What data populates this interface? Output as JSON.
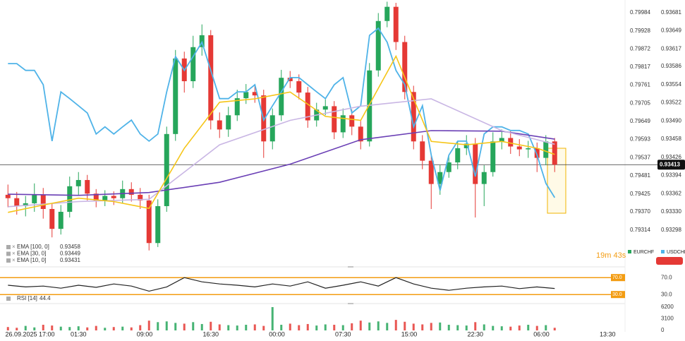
{
  "chart_data": [
    {
      "type": "candlestick",
      "x": [
        0,
        1,
        2,
        3,
        4,
        5,
        6,
        7,
        8,
        9,
        10,
        11,
        12,
        13,
        14,
        15,
        16,
        17,
        18,
        19,
        20,
        21,
        22,
        23,
        24,
        25,
        26,
        27,
        28,
        29,
        30,
        31,
        32,
        33,
        34,
        35,
        36,
        37,
        38,
        39,
        40,
        41,
        42,
        43,
        44,
        45,
        46,
        47,
        48,
        49,
        50,
        51,
        52,
        53,
        54,
        55,
        56,
        57,
        58,
        59,
        60,
        61,
        62
      ],
      "xlim": [
        -0.5,
        70
      ],
      "xticks": [
        {
          "value": 2.5,
          "label": "26.09.2025  17:00"
        },
        {
          "value": 8,
          "label": "01:30"
        },
        {
          "value": 15.5,
          "label": "09:00"
        },
        {
          "value": 23,
          "label": "16:30"
        },
        {
          "value": 30.5,
          "label": "00:00"
        },
        {
          "value": 38,
          "label": "07:30"
        },
        {
          "value": 45.5,
          "label": "15:00"
        },
        {
          "value": 53,
          "label": "22:30"
        },
        {
          "value": 60.5,
          "label": "06:00"
        },
        {
          "value": 68,
          "label": "13:30"
        }
      ],
      "ylim": [
        0.79218,
        0.80023
      ],
      "yticks": [
        0.79984,
        0.79928,
        0.79872,
        0.79817,
        0.79761,
        0.79705,
        0.79649,
        0.79593,
        0.79537,
        0.79481,
        0.79425,
        {
          "value": 0.7937,
          "label": "0.79370"
        },
        0.79314
      ],
      "y2lim": [
        0.93243,
        0.93703
      ],
      "y2ticks": [
        0.93681,
        0.93649,
        0.93617,
        0.93586,
        0.93554,
        0.93522,
        {
          "value": 0.9349,
          "label": "0.93490"
        },
        0.93458,
        0.93426,
        0.93394,
        0.93362,
        {
          "value": 0.9333,
          "label": "0.93330"
        },
        0.93298
      ],
      "series": [
        {
          "name": "EURCHF",
          "axis": "y2",
          "up_color": "#26a65b",
          "down_color": "#e53935",
          "open": [
            0.9336,
            0.93354,
            0.9334,
            0.93345,
            0.9336,
            0.93335,
            0.933,
            0.9333,
            0.93375,
            0.93386,
            0.93362,
            0.9335,
            0.93358,
            0.93354,
            0.9337,
            0.9336,
            0.9335,
            0.93275,
            0.9334,
            0.93467,
            0.936,
            0.9356,
            0.9362,
            0.93641,
            0.93491,
            0.93475,
            0.935,
            0.9353,
            0.93541,
            0.93535,
            0.93454,
            0.935,
            0.93566,
            0.9356,
            0.9354,
            0.93491,
            0.9351,
            0.93516,
            0.9347,
            0.935,
            0.9348,
            0.93454,
            0.93579,
            0.93666,
            0.93691,
            0.93629,
            0.93541,
            0.93454,
            0.9342,
            0.93379,
            0.934,
            0.93417,
            0.93442,
            0.9345,
            0.93379,
            0.934,
            0.93454,
            0.9346,
            0.93445,
            0.9344,
            0.93442,
            0.93425,
            0.93454
          ],
          "high": [
            0.93378,
            0.93365,
            0.93358,
            0.9338,
            0.93372,
            0.93345,
            0.93342,
            0.93392,
            0.934,
            0.93395,
            0.9337,
            0.93368,
            0.93366,
            0.93385,
            0.93382,
            0.93372,
            0.9336,
            0.93352,
            0.9348,
            0.93615,
            0.93612,
            0.9364,
            0.9366,
            0.9365,
            0.93505,
            0.93515,
            0.93545,
            0.93555,
            0.93552,
            0.93545,
            0.93512,
            0.9358,
            0.93578,
            0.93572,
            0.9355,
            0.93522,
            0.93528,
            0.93525,
            0.93512,
            0.9351,
            0.9349,
            0.93592,
            0.9368,
            0.937,
            0.93698,
            0.9364,
            0.93552,
            0.93465,
            0.9343,
            0.93412,
            0.9343,
            0.93455,
            0.93465,
            0.9346,
            0.93412,
            0.9347,
            0.93475,
            0.93472,
            0.93458,
            0.93455,
            0.93452,
            0.93465,
            0.9346
          ],
          "low": [
            0.93338,
            0.93325,
            0.93322,
            0.9333,
            0.93318,
            0.93285,
            0.9329,
            0.9332,
            0.9336,
            0.9335,
            0.93338,
            0.9334,
            0.93342,
            0.93345,
            0.93348,
            0.93335,
            0.93262,
            0.93268,
            0.9333,
            0.93455,
            0.9354,
            0.93548,
            0.93605,
            0.93475,
            0.9346,
            0.93462,
            0.9349,
            0.9352,
            0.93522,
            0.93425,
            0.9344,
            0.9349,
            0.93548,
            0.93528,
            0.93478,
            0.9348,
            0.935,
            0.93458,
            0.9346,
            0.93465,
            0.9344,
            0.93445,
            0.93568,
            0.93655,
            0.93615,
            0.93528,
            0.9344,
            0.93405,
            0.93335,
            0.9336,
            0.9339,
            0.93405,
            0.9343,
            0.9332,
            0.9334,
            0.93392,
            0.9344,
            0.93432,
            0.93428,
            0.93425,
            0.934,
            0.93412,
            0.934
          ],
          "close": [
            0.93354,
            0.9334,
            0.93345,
            0.9336,
            0.93335,
            0.933,
            0.9333,
            0.93375,
            0.93386,
            0.93362,
            0.9335,
            0.93358,
            0.93354,
            0.9337,
            0.9336,
            0.9335,
            0.93275,
            0.9334,
            0.93467,
            0.936,
            0.9356,
            0.9362,
            0.93641,
            0.93491,
            0.93475,
            0.935,
            0.9353,
            0.93541,
            0.93535,
            0.93454,
            0.935,
            0.93566,
            0.9356,
            0.9354,
            0.93491,
            0.9351,
            0.93516,
            0.9347,
            0.935,
            0.9348,
            0.93454,
            0.93579,
            0.93666,
            0.93691,
            0.93629,
            0.93541,
            0.93454,
            0.9342,
            0.93379,
            0.934,
            0.93417,
            0.93442,
            0.9345,
            0.93379,
            0.934,
            0.93454,
            0.9346,
            0.93445,
            0.9344,
            0.93442,
            0.93425,
            0.93454,
            0.93413
          ]
        },
        {
          "name": "USDCHF",
          "color": "#4fb3e8",
          "values": [
            0.79827,
            0.79827,
            0.79806,
            0.79806,
            0.79762,
            0.79588,
            0.7974,
            0.79719,
            0.79697,
            0.79675,
            0.7961,
            0.79632,
            0.7961,
            0.79632,
            0.79653,
            0.7961,
            0.79588,
            0.7961,
            0.7974,
            0.79849,
            0.79806,
            0.79849,
            0.79893,
            0.79806,
            0.79719,
            0.79719,
            0.7974,
            0.7974,
            0.79762,
            0.79653,
            0.79697,
            0.7974,
            0.79784,
            0.79784,
            0.79762,
            0.7974,
            0.79719,
            0.79762,
            0.79784,
            0.79675,
            0.79697,
            0.79914,
            0.79936,
            0.79893,
            0.79806,
            0.79762,
            0.79632,
            0.79697,
            0.79545,
            0.79436,
            0.79545,
            0.79588,
            0.79588,
            0.79479,
            0.7961,
            0.79632,
            0.79632,
            0.79621,
            0.79621,
            0.7961,
            0.79545,
            0.79458,
            0.79414
          ]
        }
      ],
      "overlays": [
        {
          "name": "EMA [100, 0]",
          "color": "#6a3fb5",
          "x": [
            0,
            8,
            16,
            24,
            32,
            40,
            48,
            56,
            62
          ],
          "values": [
            0.93361,
            0.93359,
            0.93364,
            0.93382,
            0.93414,
            0.93457,
            0.93473,
            0.93472,
            0.93458
          ]
        },
        {
          "name": "EMA [30, 0]",
          "color": "#c9b6e4",
          "x": [
            0,
            8,
            16,
            24,
            32,
            40,
            48,
            56,
            62
          ],
          "values": [
            0.93339,
            0.93348,
            0.93352,
            0.93448,
            0.93491,
            0.93516,
            0.93529,
            0.93473,
            0.93449
          ]
        },
        {
          "name": "EMA [10, 0]",
          "color": "#f5c518",
          "x": [
            0,
            4,
            8,
            12,
            16,
            20,
            24,
            28,
            32,
            36,
            40,
            44,
            48,
            52,
            56,
            60,
            62
          ],
          "values": [
            0.93329,
            0.93342,
            0.93354,
            0.93348,
            0.93336,
            0.93442,
            0.93523,
            0.93529,
            0.93541,
            0.93498,
            0.93491,
            0.93604,
            0.93454,
            0.93448,
            0.93454,
            0.93442,
            0.93431
          ]
        }
      ],
      "current_price": 0.93413,
      "countdown": "19m 43s"
    },
    {
      "type": "line",
      "title": "RSI [14]",
      "color": "#222222",
      "band_color": "#f39c12",
      "x": [
        0,
        2,
        4,
        6,
        8,
        10,
        12,
        14,
        16,
        18,
        20,
        22,
        24,
        26,
        28,
        30,
        32,
        34,
        36,
        38,
        40,
        42,
        44,
        46,
        48,
        50,
        52,
        54,
        56,
        58,
        60,
        62
      ],
      "values": [
        52,
        48,
        50,
        45,
        52,
        47,
        55,
        50,
        38,
        48,
        70,
        60,
        55,
        52,
        48,
        55,
        50,
        60,
        45,
        52,
        60,
        50,
        70,
        55,
        45,
        40,
        45,
        48,
        50,
        44,
        48,
        44.4
      ],
      "xlim": [
        -0.5,
        70
      ],
      "ylim": [
        12,
        87
      ],
      "yticks": [
        {
          "value": 70,
          "label": "70.0"
        },
        {
          "value": 30,
          "label": "30.0"
        }
      ]
    },
    {
      "type": "bar",
      "values": [
        900,
        700,
        1200,
        800,
        1500,
        1300,
        1000,
        900,
        1100,
        800,
        1200,
        700,
        900,
        1000,
        800,
        1400,
        2600,
        2200,
        2400,
        2000,
        1800,
        2200,
        1700,
        2300,
        1600,
        1400,
        1300,
        1500,
        1600,
        1200,
        6200,
        1500,
        1800,
        1400,
        1700,
        1300,
        1600,
        1500,
        1400,
        1900,
        2600,
        2100,
        2400,
        2000,
        2800,
        2300,
        1800,
        1600,
        2000,
        2100,
        1500,
        1400,
        1300,
        2200,
        1600,
        1200,
        1100,
        1000,
        1300,
        1500,
        1200,
        1400,
        700
      ],
      "ylim": [
        0,
        6200
      ],
      "yticks": [
        6200,
        3100,
        0
      ]
    }
  ]
}
